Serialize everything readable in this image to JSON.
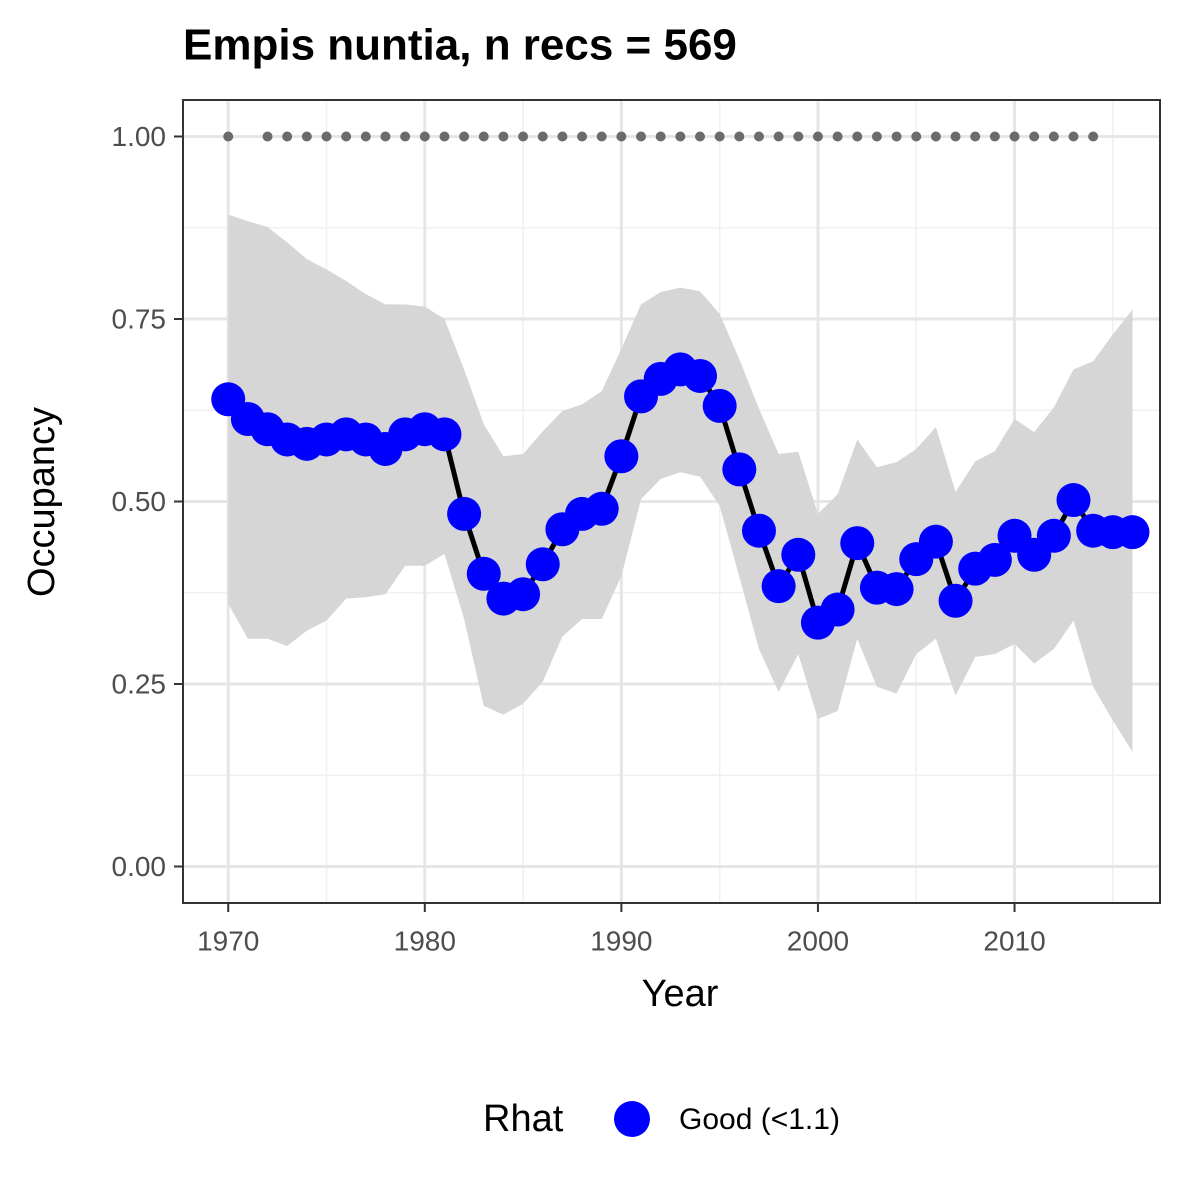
{
  "chart_data": {
    "type": "line",
    "title": "Empis nuntia, n recs = 569",
    "x_label": "Year",
    "y_label": "Occupancy",
    "x": [
      1970,
      1971,
      1972,
      1973,
      1974,
      1975,
      1976,
      1977,
      1978,
      1979,
      1980,
      1981,
      1982,
      1983,
      1984,
      1985,
      1986,
      1987,
      1988,
      1989,
      1990,
      1991,
      1992,
      1993,
      1994,
      1995,
      1996,
      1997,
      1998,
      1999,
      2000,
      2001,
      2002,
      2003,
      2004,
      2005,
      2006,
      2007,
      2008,
      2009,
      2010,
      2011,
      2012,
      2013,
      2014,
      2015,
      2016
    ],
    "series": [
      {
        "name": "Good (<1.1)",
        "color": "#0000ff",
        "line_color": "#000000",
        "band_color": "#d6d6d6",
        "values": [
          0.64,
          0.613,
          0.599,
          0.585,
          0.579,
          0.585,
          0.592,
          0.585,
          0.572,
          0.592,
          0.599,
          0.592,
          0.483,
          0.401,
          0.367,
          0.373,
          0.414,
          0.462,
          0.483,
          0.49,
          0.562,
          0.644,
          0.668,
          0.681,
          0.672,
          0.631,
          0.544,
          0.46,
          0.384,
          0.427,
          0.334,
          0.352,
          0.443,
          0.382,
          0.38,
          0.421,
          0.445,
          0.364,
          0.408,
          0.42,
          0.453,
          0.427,
          0.453,
          0.502,
          0.46,
          0.458,
          0.458
        ],
        "upper": [
          0.893,
          0.884,
          0.876,
          0.855,
          0.832,
          0.818,
          0.802,
          0.784,
          0.77,
          0.77,
          0.767,
          0.75,
          0.681,
          0.606,
          0.562,
          0.565,
          0.596,
          0.624,
          0.633,
          0.651,
          0.709,
          0.77,
          0.787,
          0.793,
          0.788,
          0.757,
          0.695,
          0.627,
          0.565,
          0.568,
          0.483,
          0.51,
          0.585,
          0.547,
          0.554,
          0.572,
          0.602,
          0.513,
          0.555,
          0.569,
          0.613,
          0.595,
          0.629,
          0.681,
          0.692,
          0.729,
          0.763
        ],
        "lower": [
          0.36,
          0.312,
          0.312,
          0.302,
          0.323,
          0.337,
          0.367,
          0.369,
          0.373,
          0.412,
          0.412,
          0.428,
          0.339,
          0.22,
          0.208,
          0.223,
          0.253,
          0.315,
          0.339,
          0.339,
          0.398,
          0.503,
          0.531,
          0.54,
          0.534,
          0.494,
          0.397,
          0.298,
          0.239,
          0.291,
          0.202,
          0.213,
          0.312,
          0.246,
          0.237,
          0.291,
          0.312,
          0.234,
          0.287,
          0.291,
          0.305,
          0.278,
          0.298,
          0.337,
          0.246,
          0.2,
          0.157
        ]
      }
    ],
    "records": {
      "color": "#6b6b6b",
      "values": [
        1,
        null,
        1,
        1,
        1,
        1,
        1,
        1,
        1,
        1,
        1,
        1,
        1,
        1,
        1,
        1,
        1,
        1,
        1,
        1,
        1,
        1,
        1,
        1,
        1,
        1,
        1,
        1,
        1,
        1,
        1,
        1,
        1,
        1,
        1,
        1,
        1,
        1,
        1,
        1,
        1,
        1,
        1,
        1,
        1,
        null,
        null
      ]
    },
    "xlim": [
      1967.7,
      2017.4
    ],
    "ylim": [
      -0.05,
      1.05
    ],
    "xticks": [
      1970,
      1980,
      1990,
      2000,
      2010
    ],
    "yticks": [
      {
        "value": 0,
        "label": "0.00"
      },
      {
        "value": 0.25,
        "label": "0.25"
      },
      {
        "value": 0.5,
        "label": "0.50"
      },
      {
        "value": 0.75,
        "label": "0.75"
      },
      {
        "value": 1,
        "label": "1.00"
      }
    ],
    "grid": true,
    "legend_title": "Rhat",
    "legend_position": "bottom"
  }
}
